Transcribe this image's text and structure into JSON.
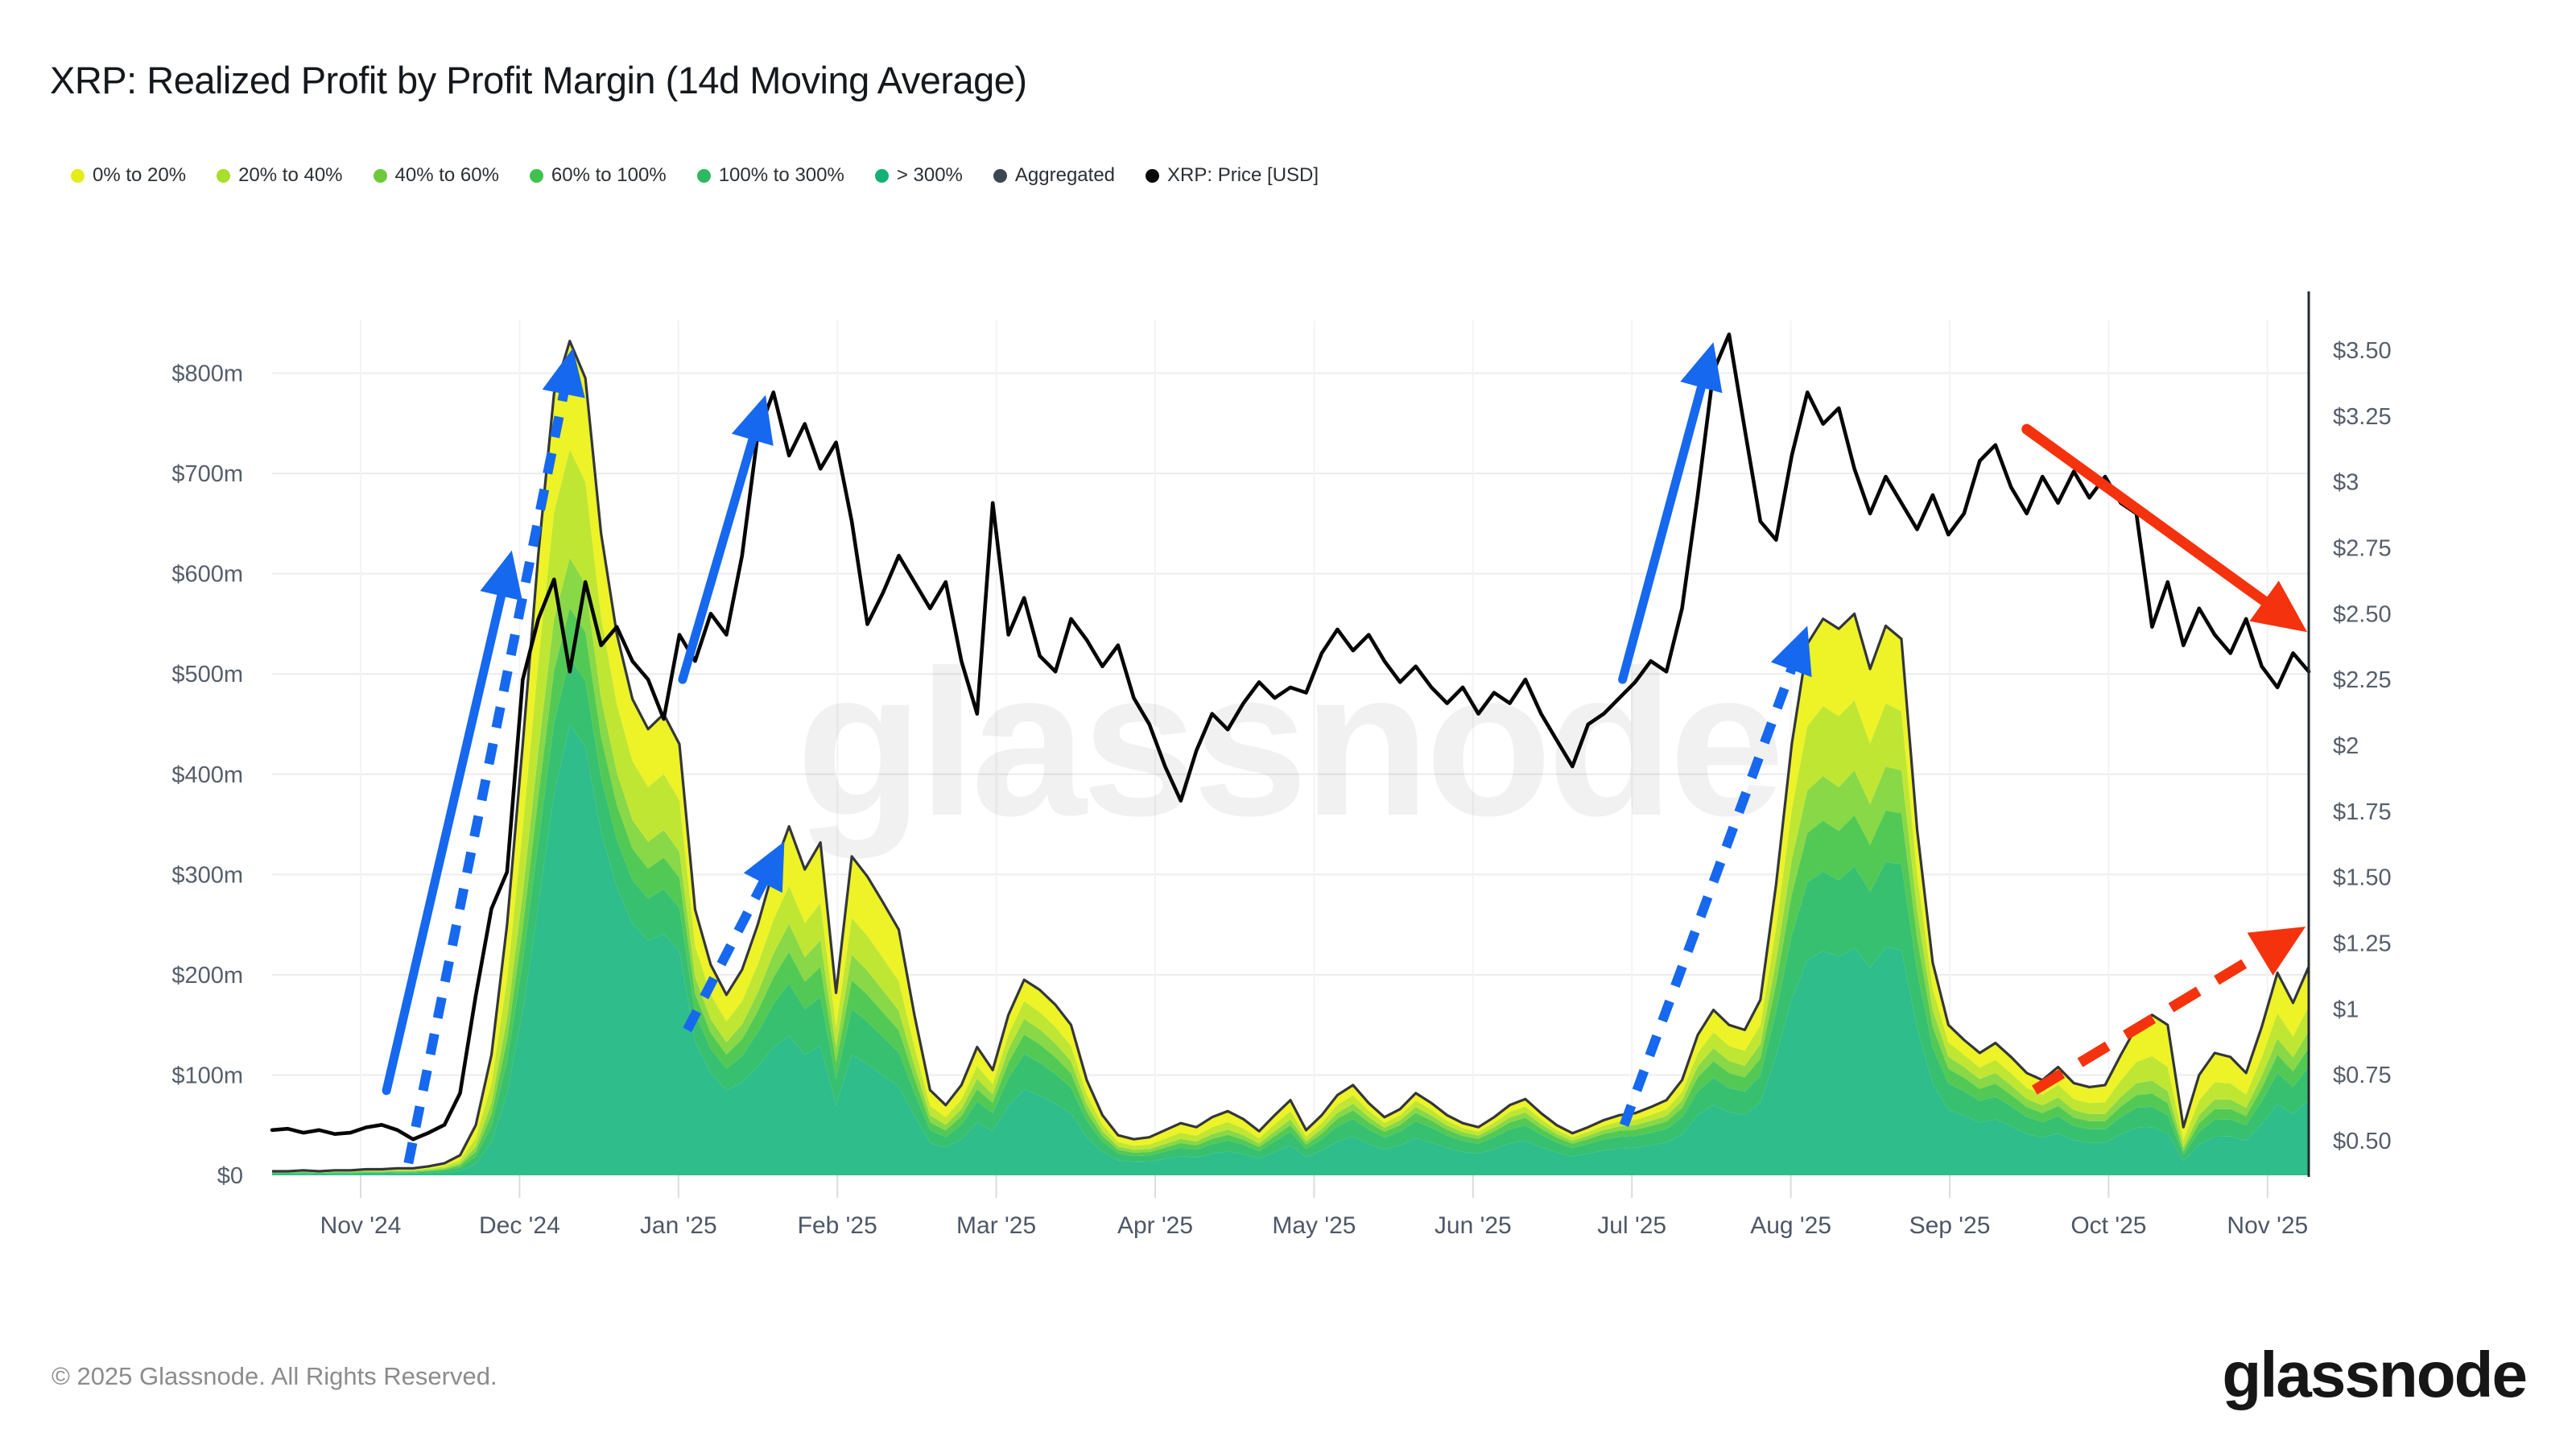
{
  "header": {
    "title": "XRP: Realized Profit by Profit Margin (14d Moving Average)"
  },
  "legend": {
    "items": [
      {
        "label": "0% to 20%",
        "color": "#e3ed18"
      },
      {
        "label": "20% to 40%",
        "color": "#a9de2b"
      },
      {
        "label": "40% to 60%",
        "color": "#6cca3a"
      },
      {
        "label": "60% to 100%",
        "color": "#3fc24d"
      },
      {
        "label": "100% to 300%",
        "color": "#2db95f"
      },
      {
        "label": "> 300%",
        "color": "#14b174"
      },
      {
        "label": "Aggregated",
        "color": "#3d4751"
      },
      {
        "label": "XRP: Price [USD]",
        "color": "#0a0a0a"
      }
    ]
  },
  "chart_data": {
    "type": "area",
    "title": "XRP: Realized Profit by Profit Margin (14d Moving Average)",
    "subtitle": "stacked realized-profit bands (left axis, $m) with XRP price overlay (right axis, USD)",
    "grid": "horizontal-light",
    "legend_position": "top-left",
    "watermark": "glassnode",
    "x_ticks": [
      "Nov '24",
      "Dec '24",
      "Jan '25",
      "Feb '25",
      "Mar '25",
      "Apr '25",
      "May '25",
      "Jun '25",
      "Jul '25",
      "Aug '25",
      "Sep '25",
      "Oct '25",
      "Nov '25"
    ],
    "left_axis": {
      "title": "Realized Profit",
      "unit": "$m",
      "min": 0,
      "max": 800,
      "tick_labels": [
        "$0",
        "$100m",
        "$200m",
        "$300m",
        "$400m",
        "$500m",
        "$600m",
        "$700m",
        "$800m"
      ]
    },
    "right_axis": {
      "title": "XRP Price",
      "unit": "USD",
      "min": 0.5,
      "max": 3.5,
      "tick_labels": [
        "$3.50",
        "$3.25",
        "$3",
        "$2.75",
        "$2.50",
        "$2.25",
        "$2",
        "$1.75",
        "$1.50",
        "$1.25",
        "$1",
        "$0.75",
        "$0.50"
      ]
    },
    "n_points": 131,
    "x_span_note": "index 0 = mid-Oct 2024, ~3-day steps, index 130 = early Nov 2025",
    "price_color": "#060606",
    "aggregated_outline_color": "#33363b",
    "price": [
      0.54,
      0.545,
      0.53,
      0.54,
      0.525,
      0.53,
      0.55,
      0.56,
      0.54,
      0.505,
      0.53,
      0.56,
      0.68,
      1.05,
      1.38,
      1.52,
      2.25,
      2.48,
      2.63,
      2.28,
      2.62,
      2.38,
      2.45,
      2.32,
      2.25,
      2.1,
      2.42,
      2.32,
      2.5,
      2.42,
      2.72,
      3.18,
      3.34,
      3.1,
      3.22,
      3.05,
      3.15,
      2.85,
      2.46,
      2.58,
      2.72,
      2.62,
      2.52,
      2.62,
      2.32,
      2.12,
      2.92,
      2.42,
      2.56,
      2.34,
      2.28,
      2.48,
      2.4,
      2.3,
      2.38,
      2.18,
      2.08,
      1.92,
      1.79,
      1.98,
      2.12,
      2.06,
      2.16,
      2.24,
      2.18,
      2.22,
      2.2,
      2.35,
      2.44,
      2.36,
      2.42,
      2.32,
      2.24,
      2.3,
      2.22,
      2.16,
      2.22,
      2.12,
      2.2,
      2.16,
      2.25,
      2.12,
      2.02,
      1.92,
      2.08,
      2.12,
      2.18,
      2.24,
      2.32,
      2.28,
      2.52,
      2.95,
      3.42,
      3.56,
      3.2,
      2.85,
      2.78,
      3.1,
      3.34,
      3.22,
      3.28,
      3.05,
      2.88,
      3.02,
      2.92,
      2.82,
      2.95,
      2.8,
      2.88,
      3.08,
      3.14,
      2.98,
      2.88,
      3.02,
      2.92,
      3.04,
      2.94,
      3.02,
      2.92,
      2.88,
      2.45,
      2.62,
      2.38,
      2.52,
      2.42,
      2.35,
      2.48,
      2.3,
      2.22,
      2.35,
      2.28
    ],
    "total_profit_musd": [
      4,
      4,
      5,
      4,
      5,
      5,
      6,
      6,
      7,
      7,
      9,
      12,
      20,
      50,
      120,
      250,
      430,
      620,
      780,
      832,
      795,
      640,
      540,
      475,
      445,
      460,
      430,
      265,
      210,
      180,
      205,
      250,
      305,
      348,
      305,
      332,
      182,
      318,
      298,
      272,
      245,
      160,
      85,
      70,
      90,
      128,
      105,
      160,
      195,
      185,
      170,
      150,
      95,
      60,
      40,
      36,
      38,
      45,
      52,
      48,
      58,
      64,
      56,
      44,
      60,
      75,
      45,
      60,
      80,
      90,
      72,
      58,
      66,
      82,
      72,
      60,
      52,
      48,
      58,
      70,
      76,
      62,
      50,
      42,
      48,
      55,
      60,
      62,
      68,
      75,
      95,
      140,
      165,
      150,
      145,
      175,
      290,
      430,
      530,
      555,
      545,
      560,
      505,
      548,
      535,
      345,
      212,
      150,
      135,
      122,
      132,
      118,
      102,
      95,
      108,
      92,
      88,
      90,
      120,
      148,
      160,
      150,
      48,
      100,
      122,
      118,
      102,
      148,
      202,
      172,
      208
    ],
    "bands": [
      {
        "name": "> 300%",
        "color": "#2ebd8b"
      },
      {
        "name": "100% to 300%",
        "color": "#38c071"
      },
      {
        "name": "60% to 100%",
        "color": "#52c955"
      },
      {
        "name": "40% to 60%",
        "color": "#88d847"
      },
      {
        "name": "20% to 40%",
        "color": "#c0e634"
      },
      {
        "name": "0% to 20%",
        "color": "#edf327"
      }
    ],
    "band_fraction_keyframes": {
      "idx": [
        0,
        13,
        19,
        26,
        33,
        40,
        48,
        56,
        63,
        72,
        85,
        93,
        100,
        108,
        117,
        121,
        126,
        130
      ],
      "rows": [
        [
          0.3,
          0.22,
          0.13,
          0.1,
          0.12,
          0.13
        ],
        [
          0.22,
          0.15,
          0.1,
          0.1,
          0.17,
          0.26
        ],
        [
          0.54,
          0.08,
          0.06,
          0.06,
          0.13,
          0.13
        ],
        [
          0.52,
          0.1,
          0.07,
          0.06,
          0.12,
          0.13
        ],
        [
          0.4,
          0.15,
          0.09,
          0.08,
          0.11,
          0.17
        ],
        [
          0.36,
          0.14,
          0.09,
          0.08,
          0.12,
          0.21
        ],
        [
          0.44,
          0.18,
          0.1,
          0.08,
          0.09,
          0.11
        ],
        [
          0.36,
          0.16,
          0.09,
          0.08,
          0.12,
          0.19
        ],
        [
          0.38,
          0.17,
          0.09,
          0.08,
          0.12,
          0.16
        ],
        [
          0.45,
          0.21,
          0.1,
          0.07,
          0.08,
          0.09
        ],
        [
          0.45,
          0.2,
          0.1,
          0.07,
          0.08,
          0.1
        ],
        [
          0.42,
          0.16,
          0.1,
          0.08,
          0.1,
          0.14
        ],
        [
          0.4,
          0.14,
          0.09,
          0.08,
          0.13,
          0.16
        ],
        [
          0.44,
          0.18,
          0.1,
          0.08,
          0.09,
          0.11
        ],
        [
          0.36,
          0.15,
          0.09,
          0.08,
          0.13,
          0.19
        ],
        [
          0.28,
          0.12,
          0.08,
          0.08,
          0.16,
          0.28
        ],
        [
          0.34,
          0.15,
          0.09,
          0.08,
          0.13,
          0.21
        ],
        [
          0.36,
          0.16,
          0.09,
          0.08,
          0.12,
          0.19
        ]
      ]
    },
    "annotations": {
      "blue": "#1668ee",
      "red": "#f4320d",
      "arrows": [
        {
          "name": "nov-dec-price-run-up",
          "space": "price",
          "dashed": false,
          "color": "#1668ee",
          "x1": 7.3,
          "y1": 0.69,
          "x2": 15.3,
          "y2": 2.74
        },
        {
          "name": "nov-dec-profit-surge",
          "space": "profit",
          "dashed": true,
          "color": "#1668ee",
          "x1": 8.7,
          "y1": 12,
          "x2": 19.2,
          "y2": 825
        },
        {
          "name": "january-price-run-up",
          "space": "price",
          "dashed": false,
          "color": "#1668ee",
          "x1": 26.2,
          "y1": 2.25,
          "x2": 31.5,
          "y2": 3.33
        },
        {
          "name": "january-profit-rise",
          "space": "profit",
          "dashed": true,
          "color": "#1668ee",
          "x1": 26.5,
          "y1": 145,
          "x2": 32.7,
          "y2": 333
        },
        {
          "name": "july-price-run-up",
          "space": "price",
          "dashed": false,
          "color": "#1668ee",
          "x1": 86.2,
          "y1": 2.25,
          "x2": 92.0,
          "y2": 3.53
        },
        {
          "name": "july-august-profit-surge",
          "space": "profit",
          "dashed": true,
          "color": "#1668ee",
          "x1": 86.3,
          "y1": 50,
          "x2": 98.0,
          "y2": 548
        },
        {
          "name": "q4-price-decline",
          "space": "price",
          "dashed": false,
          "color": "#f4320d",
          "x1": 112.0,
          "y1": 3.2,
          "x2": 129.9,
          "y2": 2.43
        },
        {
          "name": "q4-profit-uptrend",
          "space": "profit",
          "dashed": true,
          "color": "#f4320d",
          "x1": 112.5,
          "y1": 85,
          "x2": 129.8,
          "y2": 248
        }
      ]
    }
  },
  "footer": {
    "copyright": "© 2025 Glassnode. All Rights Reserved.",
    "brand": "glassnode"
  }
}
